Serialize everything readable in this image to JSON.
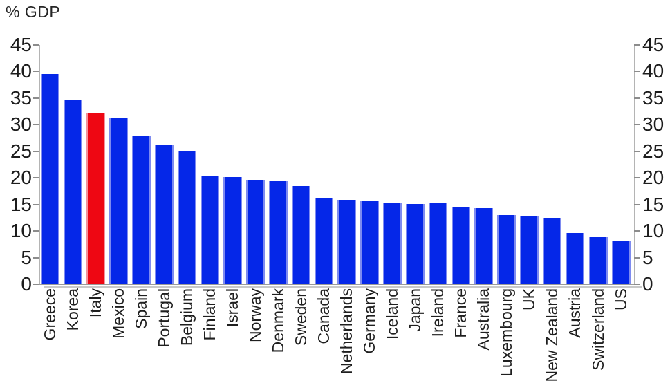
{
  "title": "% GDP",
  "axes": {
    "left_tick_labels": [
      "45",
      "40",
      "35",
      "30",
      "25",
      "20",
      "15",
      "10",
      "5",
      "0"
    ],
    "right_tick_labels": [
      "45",
      "40",
      "35",
      "30",
      "25",
      "20",
      "15",
      "10",
      "5",
      "0"
    ]
  },
  "colors": {
    "bar_blue": "#0527e8",
    "bar_blue_edge": "#7e8bf0",
    "bar_red": "#ee0713",
    "bar_red_edge": "#f4929a",
    "axis_line": "#b4b4b4",
    "tick_mark": "#8c8c8c",
    "text": "#1c1c1c",
    "baseline_shadow": "#c9c9c9"
  },
  "chart_data": {
    "type": "bar",
    "title": "% GDP",
    "categories": [
      "Greece",
      "Korea",
      "Italy",
      "Mexico",
      "Spain",
      "Portugal",
      "Belgium",
      "Finland",
      "Israel",
      "Norway",
      "Denmark",
      "Sweden",
      "Canada",
      "Netherlands",
      "Germany",
      "Iceland",
      "Japan",
      "Ireland",
      "France",
      "Australia",
      "Luxembourg",
      "UK",
      "New Zealand",
      "Austria",
      "Switzerland",
      "US"
    ],
    "values": [
      39.5,
      34.6,
      32.3,
      31.4,
      27.9,
      26.2,
      25.1,
      20.4,
      20.1,
      19.5,
      19.4,
      18.5,
      16.1,
      15.9,
      15.6,
      15.2,
      15.1,
      15.2,
      14.4,
      14.3,
      13.0,
      12.8,
      12.5,
      9.6,
      8.8,
      8.1
    ],
    "highlight_category": "Italy",
    "highlight_color": "#ee0713",
    "bar_color": "#0527e8",
    "xlabel": "",
    "ylabel": "% GDP",
    "ylim": [
      0,
      45
    ],
    "ytick_step": 5,
    "grid": false,
    "legend": false,
    "dual_y_axis": true,
    "x_label_rotation_deg": 90
  }
}
